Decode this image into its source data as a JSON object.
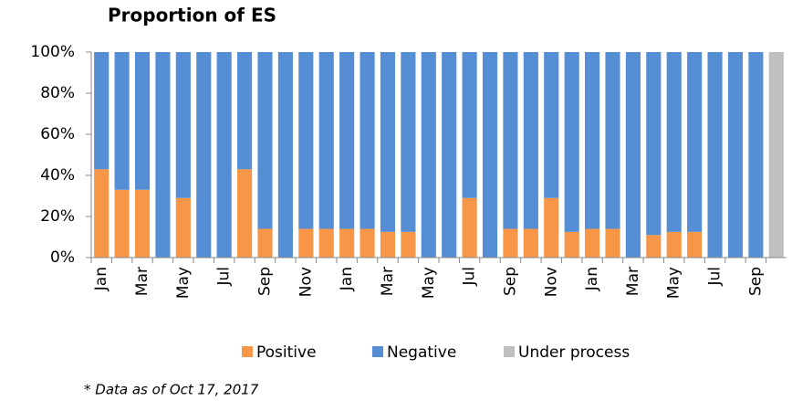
{
  "chart_data": {
    "type": "stacked_bar",
    "title": "Proportion of ES",
    "categories": [
      "Jan",
      null,
      "Mar",
      null,
      "May",
      null,
      "Jul",
      null,
      "Sep",
      null,
      "Nov",
      null,
      "Jan",
      null,
      "Mar",
      null,
      "May",
      null,
      "Jul",
      null,
      "Sep",
      null,
      "Nov",
      null,
      "Jan",
      null,
      "Mar",
      null,
      "May",
      null,
      "Jul",
      null,
      "Sep",
      null
    ],
    "series": [
      {
        "name": "Positive",
        "color": "#f79646",
        "values": [
          43,
          33,
          33,
          0,
          29,
          0,
          0,
          43,
          14,
          0,
          14,
          14,
          14,
          14,
          12.5,
          12.5,
          0,
          0,
          29,
          0,
          14,
          14,
          29,
          12.5,
          14,
          14,
          0,
          11,
          12.5,
          12.5,
          0,
          0,
          0,
          0
        ]
      },
      {
        "name": "Negative",
        "color": "#558ed5",
        "values": [
          57,
          67,
          67,
          100,
          71,
          100,
          100,
          57,
          86,
          100,
          86,
          86,
          86,
          86,
          87.5,
          87.5,
          100,
          100,
          71,
          100,
          86,
          86,
          71,
          87.5,
          86,
          86,
          100,
          89,
          87.5,
          87.5,
          100,
          100,
          100,
          0
        ]
      },
      {
        "name": "Under process",
        "color": "#bfbfbf",
        "values": [
          0,
          0,
          0,
          0,
          0,
          0,
          0,
          0,
          0,
          0,
          0,
          0,
          0,
          0,
          0,
          0,
          0,
          0,
          0,
          0,
          0,
          0,
          0,
          0,
          0,
          0,
          0,
          0,
          0,
          0,
          0,
          0,
          0,
          100
        ]
      }
    ],
    "ylim": [
      0,
      100
    ],
    "yticks": [
      {
        "value": 0,
        "label": "0%"
      },
      {
        "value": 20,
        "label": "20%"
      },
      {
        "value": 40,
        "label": "40%"
      },
      {
        "value": 60,
        "label": "60%"
      },
      {
        "value": 80,
        "label": "80%"
      },
      {
        "value": 100,
        "label": "100%"
      }
    ],
    "legend": "bottom",
    "annotation": "* Data as of  Oct  17, 2017"
  }
}
